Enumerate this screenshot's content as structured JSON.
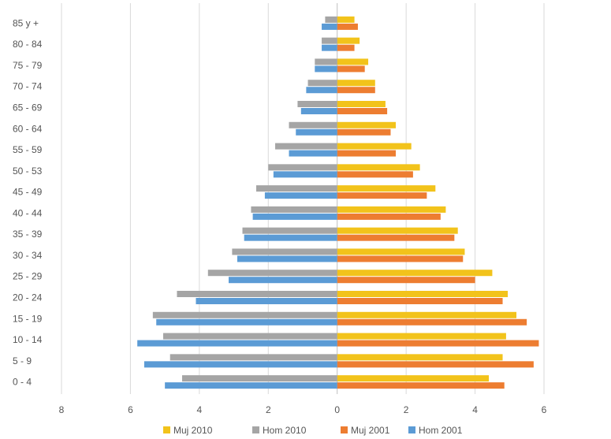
{
  "chart_data": {
    "type": "bar",
    "orientation": "horizontal",
    "title": "",
    "categories": [
      "0 - 4",
      "5 - 9",
      "10 - 14",
      "15 - 19",
      "20 - 24",
      "25 - 29",
      "30 - 34",
      "35 - 39",
      "40 - 44",
      "45 - 49",
      "50 - 53",
      "55 - 59",
      "60 - 64",
      "65 - 69",
      "70 - 74",
      "75 - 79",
      "80 - 84",
      "85 y +"
    ],
    "series": [
      {
        "name": "Muj 2010",
        "color": "#F2C31B",
        "values": [
          4.4,
          4.8,
          4.9,
          5.2,
          4.95,
          4.5,
          3.7,
          3.5,
          3.15,
          2.85,
          2.4,
          2.15,
          1.7,
          1.4,
          1.1,
          0.9,
          0.65,
          0.5
        ]
      },
      {
        "name": "Hom 2010",
        "color": "#A5A5A5",
        "values": [
          4.5,
          4.85,
          5.05,
          5.35,
          4.65,
          3.75,
          3.05,
          2.75,
          2.5,
          2.35,
          2.0,
          1.8,
          1.4,
          1.15,
          0.85,
          0.65,
          0.45,
          0.35
        ]
      },
      {
        "name": "Muj 2001",
        "color": "#ED7D31",
        "values": [
          4.85,
          5.7,
          5.85,
          5.5,
          4.8,
          4.0,
          3.65,
          3.4,
          3.0,
          2.6,
          2.2,
          1.7,
          1.55,
          1.45,
          1.1,
          0.8,
          0.5,
          0.6
        ]
      },
      {
        "name": "Hom 2001",
        "color": "#5B9BD5",
        "values": [
          5.0,
          5.6,
          5.8,
          5.25,
          4.1,
          3.15,
          2.9,
          2.7,
          2.45,
          2.1,
          1.85,
          1.4,
          1.2,
          1.05,
          0.9,
          0.65,
          0.45,
          0.45
        ]
      }
    ],
    "series_direction": {
      "Muj 2010": "right",
      "Muj 2001": "right",
      "Hom 2010": "left",
      "Hom 2001": "left"
    },
    "xlim": [
      -8,
      6
    ],
    "xticks": [
      -8,
      -6,
      -4,
      -2,
      0,
      2,
      4,
      6
    ],
    "xtick_labels": [
      "8",
      "6",
      "4",
      "2",
      "0",
      "2",
      "4",
      "6"
    ],
    "xlabel": "",
    "ylabel": "",
    "grid": true,
    "legend_position": "bottom"
  }
}
